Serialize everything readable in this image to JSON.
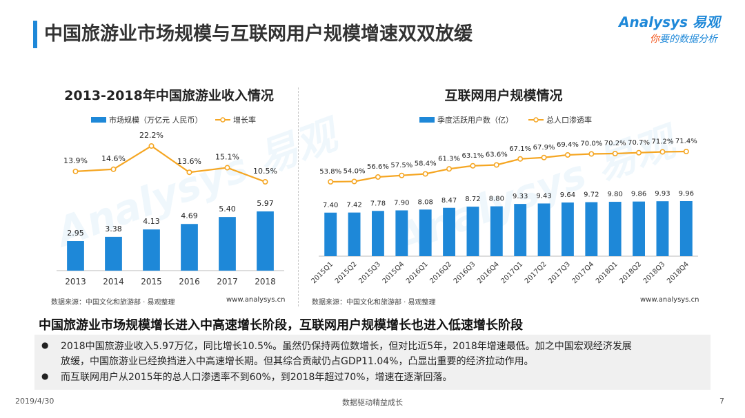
{
  "page": {
    "title": "中国旅游业市场规模与互联网用户规模增速双双放缓",
    "logo_brand": "Analysys 易观",
    "logo_slogan_1": "你",
    "logo_slogan_2": "要的数据分析",
    "watermark_left": "Analysys 易观",
    "watermark_right": "Analysys 易观",
    "accent_color": "#1e88d8",
    "line_color": "#f5a623"
  },
  "left_chart": {
    "source": "数据来源：中国文化和旅游部 · 易观整理",
    "site": "www.analysys.cn"
  },
  "right_chart": {
    "source": "数据来源：中国文化和旅游部 · 易观整理",
    "site": "www.analysys.cn"
  },
  "chart_data": [
    {
      "type": "bar",
      "title": "2013-2018年中国旅游业收入情况",
      "categories": [
        "2013",
        "2014",
        "2015",
        "2016",
        "2017",
        "2018"
      ],
      "series": [
        {
          "name": "市场规模（万亿元 人民币）",
          "type": "bar",
          "values": [
            2.95,
            3.38,
            4.13,
            4.69,
            5.4,
            5.97
          ],
          "labels": [
            "2.95",
            "3.38",
            "4.13",
            "4.69",
            "5.40",
            "5.97"
          ],
          "color": "#1e88d8"
        },
        {
          "name": "增长率",
          "type": "line",
          "values": [
            13.9,
            14.6,
            22.2,
            13.6,
            15.1,
            10.5
          ],
          "labels": [
            "13.9%",
            "14.6%",
            "22.2%",
            "13.6%",
            "15.1%",
            "10.5%"
          ],
          "color": "#f5a623"
        }
      ],
      "legend": "top"
    },
    {
      "type": "bar",
      "title": "互联网用户规模情况",
      "categories": [
        "2015Q1",
        "2015Q2",
        "2015Q3",
        "2015Q4",
        "2016Q1",
        "2016Q2",
        "2016Q3",
        "2016Q4",
        "2017Q1",
        "2017Q2",
        "2017Q3",
        "2017Q4",
        "2018Q1",
        "2018Q2",
        "2018Q3",
        "2018Q4"
      ],
      "series": [
        {
          "name": "季度活跃用户数（亿）",
          "type": "bar",
          "values": [
            7.4,
            7.42,
            7.78,
            7.9,
            8.08,
            8.47,
            8.72,
            8.8,
            9.33,
            9.43,
            9.64,
            9.72,
            9.8,
            9.86,
            9.93,
            9.96
          ],
          "labels": [
            "7.40",
            "7.42",
            "7.78",
            "7.90",
            "8.08",
            "8.47",
            "8.72",
            "8.80",
            "9.33",
            "9.43",
            "9.64",
            "9.72",
            "9.80",
            "9.86",
            "9.93",
            "9.96"
          ],
          "color": "#1e88d8"
        },
        {
          "name": "总人口渗透率",
          "type": "line",
          "values": [
            53.8,
            54.0,
            56.6,
            57.5,
            58.4,
            61.3,
            63.1,
            63.6,
            67.1,
            67.9,
            69.4,
            70.0,
            70.2,
            70.7,
            71.2,
            71.4
          ],
          "labels": [
            "53.8%",
            "54.0%",
            "56.6%",
            "57.5%",
            "58.4%",
            "61.3%",
            "63.1%",
            "63.6%",
            "67.1%",
            "67.9%",
            "69.4%",
            "70.0%",
            "70.2%",
            "70.7%",
            "71.2%",
            "71.4%"
          ],
          "color": "#f5a623"
        }
      ],
      "legend": "top"
    }
  ],
  "summary": {
    "title": "中国旅游业市场规模增长进入中高速增长阶段，互联网用户规模增长也进入低速增长阶段",
    "bullet_symbol": "●",
    "bullet_1_line_1": "2018中国旅游业收入5.97万亿，同比增长10.5%。虽然仍保持两位数增长，但对比近5年，2018年增速最低。加之中国宏观经济发展",
    "bullet_1_line_2": "放缓，中国旅游业已经换挡进入中高速增长期。但其综合贡献仍占GDP11.04%，凸显出重要的经济拉动作用。",
    "bullet_2": "而互联网用户从2015年的总人口渗透率不到60%，到2018年超过70%，增速在逐渐回落。"
  },
  "footer": {
    "date": "2019/4/30",
    "center": "数据驱动精益成长",
    "page": "7"
  }
}
